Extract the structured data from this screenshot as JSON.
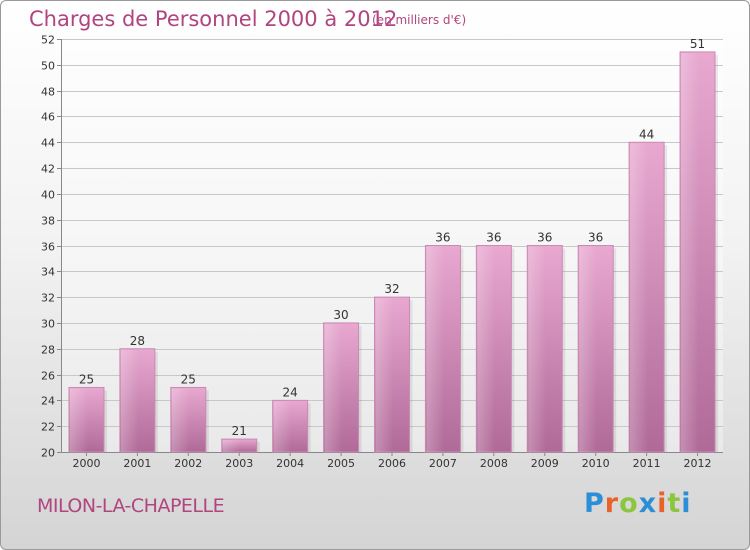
{
  "header": {
    "title": "Charges de Personnel 2000 à 2012",
    "unit": "(en milliers d'€)"
  },
  "footer": {
    "city": "MILON-LA-CHAPELLE",
    "logo_text": "Proxiti",
    "logo_colors": [
      "#2a8fd6",
      "#e8632a",
      "#8cc63f",
      "#2a8fd6",
      "#e8632a",
      "#8cc63f",
      "#2a8fd6"
    ]
  },
  "chart_data": {
    "type": "bar",
    "title": "Charges de Personnel 2000 à 2012",
    "subtitle": "(en milliers d'€)",
    "xlabel": "",
    "ylabel": "",
    "categories": [
      "2000",
      "2001",
      "2002",
      "2003",
      "2004",
      "2005",
      "2006",
      "2007",
      "2008",
      "2009",
      "2010",
      "2011",
      "2012"
    ],
    "values": [
      25,
      28,
      25,
      21,
      24,
      30,
      32,
      36,
      36,
      36,
      36,
      44,
      51
    ],
    "ylim": [
      20,
      52
    ],
    "yticks": [
      20,
      22,
      24,
      26,
      28,
      30,
      32,
      34,
      36,
      38,
      40,
      42,
      44,
      46,
      48,
      50,
      52
    ],
    "grid": true,
    "legend": "none",
    "bar_color_top": "#e8a8d0",
    "bar_color_bottom": "#b06a98",
    "text_color": "#b0457f"
  }
}
